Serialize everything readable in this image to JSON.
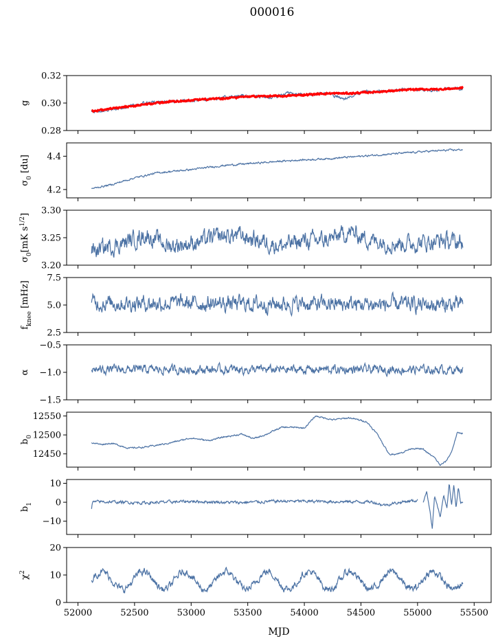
{
  "title": "000016",
  "colors": {
    "series": "#4c72a4",
    "overlay": "#ff0000"
  },
  "chart_data": {
    "type": "line",
    "title": "000016",
    "xlabel": "MJD",
    "xlim": [
      51900,
      55650
    ],
    "xticks": [
      52000,
      52500,
      53000,
      53500,
      54000,
      54500,
      55000,
      55500
    ],
    "xtick_labels": [
      "52000",
      "52500",
      "53000",
      "53500",
      "54000",
      "54500",
      "55000",
      "55500"
    ],
    "panels": [
      {
        "id": "g",
        "ylabel": "g",
        "ylim": [
          0.28,
          0.32
        ],
        "yticks": [
          0.28,
          0.3,
          0.32
        ],
        "ytick_labels": [
          "0.28",
          "0.30",
          "0.32"
        ],
        "series": [
          {
            "color": "#4c72a4",
            "x": [
              52120,
              52200,
              52400,
              52600,
              52800,
              53000,
              53200,
              53400,
              53600,
              53700,
              53850,
              54000,
              54200,
              54350,
              54500,
              54700,
              54900,
              55100,
              55300,
              55400
            ],
            "y": [
              0.294,
              0.294,
              0.297,
              0.3,
              0.301,
              0.302,
              0.303,
              0.305,
              0.305,
              0.304,
              0.307,
              0.306,
              0.307,
              0.303,
              0.308,
              0.309,
              0.31,
              0.309,
              0.311,
              0.31
            ],
            "noise": 0.0008
          },
          {
            "color": "#ff0000",
            "overlay": true,
            "x": [
              52120,
              52200,
              52400,
              52600,
              52800,
              53000,
              53200,
              53400,
              53600,
              53800,
              54000,
              54200,
              54400,
              54600,
              54800,
              55000,
              55200,
              55400
            ],
            "y": [
              0.294,
              0.295,
              0.297,
              0.299,
              0.301,
              0.302,
              0.303,
              0.304,
              0.305,
              0.305,
              0.306,
              0.307,
              0.307,
              0.308,
              0.309,
              0.31,
              0.31,
              0.311
            ],
            "noise": 0.0004
          }
        ]
      },
      {
        "id": "sigma0-du",
        "ylabel": "σ0 [du]",
        "ylim": [
          4.15,
          4.48
        ],
        "yticks": [
          4.2,
          4.4
        ],
        "ytick_labels": [
          "4.2",
          "4.4"
        ],
        "series": [
          {
            "color": "#4c72a4",
            "x": [
              52120,
              52300,
              52500,
              52700,
              53000,
              53300,
              53600,
              53900,
              54200,
              54500,
              54800,
              55100,
              55400
            ],
            "y": [
              4.205,
              4.23,
              4.27,
              4.3,
              4.32,
              4.345,
              4.36,
              4.375,
              4.385,
              4.4,
              4.415,
              4.43,
              4.44
            ],
            "noise": 0.004
          }
        ]
      },
      {
        "id": "sigma0-mks",
        "ylabel": "σ0[mK s1/2]",
        "ylim": [
          3.2,
          3.3
        ],
        "yticks": [
          3.2,
          3.25,
          3.3
        ],
        "ytick_labels": [
          "3.20",
          "3.25",
          "3.30"
        ],
        "series": [
          {
            "color": "#4c72a4",
            "x": [
              52120,
              52400,
              52600,
              52800,
              53000,
              53200,
              53400,
              53600,
              53800,
              54000,
              54200,
              54400,
              54600,
              54800,
              55000,
              55200,
              55400
            ],
            "y": [
              3.225,
              3.24,
              3.255,
              3.235,
              3.24,
              3.25,
              3.255,
              3.245,
              3.235,
              3.245,
              3.245,
              3.26,
              3.245,
              3.24,
              3.24,
              3.245,
              3.24
            ],
            "noise": 0.012
          }
        ]
      },
      {
        "id": "fknee",
        "ylabel": "fknee [mHz]",
        "ylim": [
          2.5,
          7.5
        ],
        "yticks": [
          2.5,
          5.0,
          7.5
        ],
        "ytick_labels": [
          "2.5",
          "5.0",
          "7.5"
        ],
        "series": [
          {
            "color": "#4c72a4",
            "x": [
              52120,
              55400
            ],
            "y": [
              5.2,
              5.0
            ],
            "noise": 0.55
          }
        ]
      },
      {
        "id": "alpha",
        "ylabel": "α",
        "ylim": [
          -1.5,
          -0.5
        ],
        "yticks": [
          -1.5,
          -1.0,
          -0.5
        ],
        "ytick_labels": [
          "−1.5",
          "−1.0",
          "−0.5"
        ],
        "series": [
          {
            "color": "#4c72a4",
            "x": [
              52120,
              55400
            ],
            "y": [
              -0.95,
              -0.95
            ],
            "noise": 0.06
          }
        ]
      },
      {
        "id": "b0",
        "ylabel": "b0",
        "ylim": [
          12415,
          12560
        ],
        "yticks": [
          12450,
          12500,
          12550
        ],
        "ytick_labels": [
          "12450",
          "12500",
          "12550"
        ],
        "series": [
          {
            "color": "#4c72a4",
            "x": [
              52120,
              52200,
              52300,
              52450,
              52600,
              52800,
              53000,
              53150,
              53300,
              53450,
              53550,
              53650,
              53800,
              53900,
              54000,
              54100,
              54250,
              54400,
              54550,
              54650,
              54750,
              54850,
              54950,
              55050,
              55100,
              55150,
              55200,
              55250,
              55300,
              55350,
              55400
            ],
            "y": [
              12480,
              12475,
              12478,
              12465,
              12468,
              12478,
              12492,
              12485,
              12495,
              12502,
              12490,
              12500,
              12520,
              12520,
              12518,
              12550,
              12540,
              12545,
              12535,
              12500,
              12448,
              12452,
              12465,
              12462,
              12450,
              12440,
              12420,
              12430,
              12455,
              12505,
              12505
            ],
            "noise": 1.5
          }
        ]
      },
      {
        "id": "b1",
        "ylabel": "b1",
        "ylim": [
          -17,
          12
        ],
        "yticks": [
          -10,
          0,
          10
        ],
        "ytick_labels": [
          "−10",
          "0",
          "10"
        ],
        "series": [
          {
            "color": "#4c72a4",
            "x": [
              52120,
              52130,
              52200,
              52600,
              53000,
              53400,
              53800,
              54200,
              54600,
              54700,
              54900,
              55000
            ],
            "y": [
              -3,
              0,
              0.3,
              -0.3,
              0.5,
              -0.2,
              0.6,
              0.4,
              0.2,
              -1.5,
              0.5,
              1
            ],
            "noise": 0.6
          },
          {
            "color": "#4c72a4",
            "x": [
              55050,
              55080,
              55110,
              55130,
              55150,
              55180,
              55200,
              55230,
              55260,
              55280,
              55300,
              55320,
              55340,
              55360,
              55380,
              55400
            ],
            "y": [
              0,
              6,
              -5,
              -14,
              3,
              -3,
              -8,
              4,
              -3,
              10,
              -2,
              9,
              -3,
              8,
              0,
              0
            ],
            "noise": 0.3
          }
        ]
      },
      {
        "id": "chi2",
        "ylabel": "χ2",
        "ylim": [
          0,
          20
        ],
        "yticks": [
          0,
          10,
          20
        ],
        "ytick_labels": [
          "0",
          "10",
          "20"
        ],
        "series": [
          {
            "color": "#4c72a4",
            "x": [
              52120,
              55400
            ],
            "y": [
              8,
              8
            ],
            "noise": 1.0,
            "periodic": {
              "period": 365.25,
              "amplitude": 3.2
            }
          }
        ]
      }
    ]
  }
}
